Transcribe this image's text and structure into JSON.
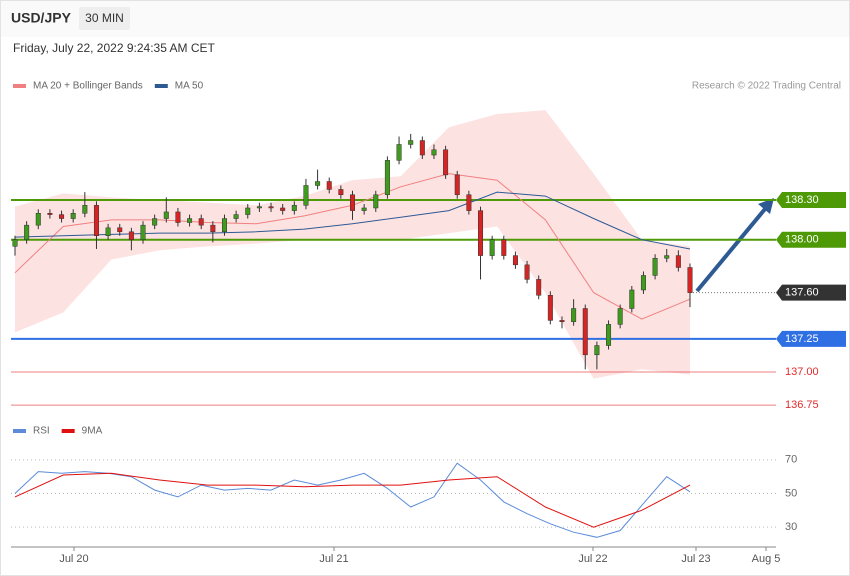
{
  "header": {
    "symbol": "USD/JPY",
    "timeframe": "30 MIN",
    "timestamp": "Friday, July 22, 2022 9:24:35 AM CET",
    "credit": "Research © 2022 Trading Central"
  },
  "chart_data": [
    {
      "type": "candlestick",
      "open": [
        137.95,
        138.0,
        138.11,
        138.2,
        138.19,
        138.16,
        138.2,
        138.26,
        138.03,
        138.09,
        138.06,
        138.0,
        138.11,
        138.16,
        138.21,
        138.13,
        138.16,
        138.11,
        138.06,
        138.16,
        138.19,
        138.24,
        138.25,
        138.24,
        138.22,
        138.26,
        138.41,
        138.44,
        138.38,
        138.34,
        138.22,
        138.24,
        138.34,
        138.6,
        138.72,
        138.75,
        138.64,
        138.68,
        138.49,
        138.34,
        138.22,
        137.88,
        138.0,
        137.88,
        137.81,
        137.7,
        137.58,
        137.39,
        137.38,
        137.48,
        137.13,
        137.2,
        137.36,
        137.48,
        137.62,
        137.73,
        137.86,
        137.88,
        137.79
      ],
      "high": [
        138.03,
        138.14,
        138.23,
        138.23,
        138.22,
        138.23,
        138.36,
        138.29,
        138.12,
        138.12,
        138.09,
        138.14,
        138.19,
        138.32,
        138.24,
        138.19,
        138.19,
        138.14,
        138.19,
        138.22,
        138.27,
        138.28,
        138.28,
        138.27,
        138.29,
        138.46,
        138.53,
        138.47,
        138.41,
        138.37,
        138.27,
        138.37,
        138.63,
        138.78,
        138.8,
        138.78,
        138.72,
        138.71,
        138.52,
        138.37,
        138.25,
        138.03,
        138.03,
        137.91,
        137.84,
        137.73,
        137.61,
        137.42,
        137.55,
        137.51,
        137.23,
        137.39,
        137.51,
        137.65,
        137.76,
        137.89,
        137.93,
        137.92,
        137.82
      ],
      "low": [
        137.88,
        137.97,
        138.08,
        138.16,
        138.13,
        138.13,
        138.17,
        137.93,
        138.0,
        138.03,
        137.92,
        137.97,
        138.08,
        138.13,
        138.1,
        138.1,
        138.08,
        137.98,
        138.03,
        138.13,
        138.16,
        138.21,
        138.21,
        138.19,
        138.19,
        138.23,
        138.38,
        138.35,
        138.31,
        138.15,
        138.19,
        138.21,
        138.31,
        138.57,
        138.69,
        138.61,
        138.61,
        138.46,
        138.31,
        138.19,
        137.7,
        137.85,
        137.85,
        137.78,
        137.67,
        137.55,
        137.36,
        137.33,
        137.35,
        137.02,
        137.02,
        137.17,
        137.33,
        137.45,
        137.59,
        137.7,
        137.83,
        137.76,
        137.49
      ],
      "close": [
        138.0,
        138.11,
        138.2,
        138.19,
        138.16,
        138.2,
        138.26,
        138.03,
        138.09,
        138.06,
        138.0,
        138.11,
        138.16,
        138.21,
        138.13,
        138.16,
        138.11,
        138.06,
        138.16,
        138.19,
        138.24,
        138.25,
        138.24,
        138.22,
        138.26,
        138.41,
        138.44,
        138.38,
        138.34,
        138.22,
        138.24,
        138.34,
        138.6,
        138.72,
        138.75,
        138.64,
        138.68,
        138.49,
        138.34,
        138.22,
        137.88,
        138.0,
        137.88,
        137.81,
        137.7,
        137.58,
        137.39,
        137.38,
        137.48,
        137.13,
        137.2,
        137.36,
        137.48,
        137.62,
        137.73,
        137.86,
        137.88,
        137.79,
        137.6
      ],
      "up_color": "#3f9a1e",
      "down_color": "#d42424",
      "series": [
        {
          "name": "MA 20 + Bollinger Bands",
          "color": "#f08080",
          "values": [
            137.75,
            138.1,
            138.15,
            138.15,
            138.13,
            138.12,
            138.18,
            138.26,
            138.4,
            138.5,
            138.45,
            138.15,
            137.6,
            137.4,
            137.55
          ]
        },
        {
          "name": "MA 50",
          "color": "#2e5a94",
          "values": [
            138.02,
            138.03,
            138.04,
            138.05,
            138.05,
            138.06,
            138.08,
            138.12,
            138.17,
            138.22,
            138.36,
            138.33,
            138.16,
            138.0,
            137.93
          ]
        }
      ],
      "bands": {
        "color": "#fde2e2",
        "upper": [
          138.25,
          138.35,
          138.32,
          138.3,
          138.28,
          138.26,
          138.33,
          138.45,
          138.48,
          138.85,
          138.95,
          138.98,
          138.5,
          138.0,
          137.95
        ],
        "lower": [
          137.3,
          137.45,
          137.85,
          137.92,
          137.95,
          137.97,
          138.0,
          138.0,
          138.0,
          138.05,
          138.1,
          137.6,
          136.95,
          137.02,
          136.98
        ]
      },
      "ylim": [
        136.65,
        139.1
      ],
      "levels": [
        {
          "value": 138.3,
          "label": "138.30",
          "color": "#4e9a06",
          "boxed": true
        },
        {
          "value": 138.0,
          "label": "138.00",
          "color": "#4e9a06",
          "boxed": true
        },
        {
          "value": 137.6,
          "label": "137.60",
          "color": "#333333",
          "boxed": true,
          "dotted": true
        },
        {
          "value": 137.25,
          "label": "137.25",
          "color": "#2f6fe4",
          "boxed": true
        },
        {
          "value": 137,
          "label": "137.00",
          "color": "#e22b2b",
          "boxed": false
        },
        {
          "value": 136.75,
          "label": "136.75",
          "color": "#e22b2b",
          "boxed": false
        }
      ]
    },
    {
      "type": "line",
      "series": [
        {
          "name": "RSI",
          "color": "#5b8bd9",
          "values": [
            50,
            63,
            62,
            63,
            62,
            60,
            52,
            48,
            55,
            52,
            53,
            52,
            58,
            55,
            58,
            62,
            53,
            42,
            48,
            68,
            58,
            45,
            38,
            32,
            27,
            24,
            28,
            44,
            60,
            51
          ]
        },
        {
          "name": "9MA",
          "color": "#e01010",
          "values": [
            48,
            61,
            62,
            58,
            55,
            55,
            54,
            55,
            55,
            58,
            60,
            42,
            30,
            40,
            55
          ]
        }
      ],
      "ylim": [
        20,
        80
      ],
      "yticks": [
        70,
        50,
        30
      ],
      "xticks": [
        "Jul 20",
        "Jul 21",
        "Jul 22",
        "Jul 23",
        "Aug 5"
      ]
    }
  ]
}
